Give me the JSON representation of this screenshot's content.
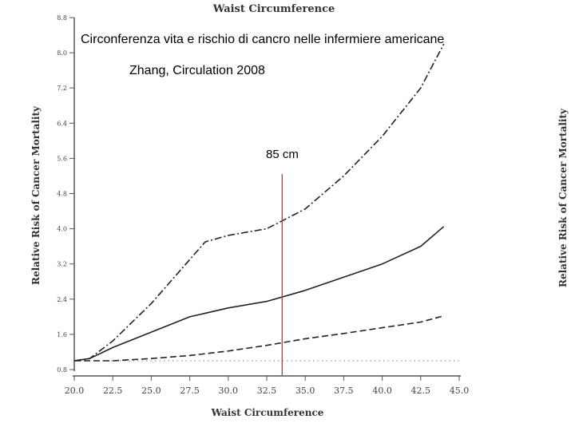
{
  "chart_data": {
    "type": "line",
    "title": "Waist Circumference",
    "xlabel": "Waist Circumference",
    "ylabel": "Relative Risk of Cancer Mortality",
    "ylabel_right": "Relative Risk of Cancer Mortality",
    "xlim": [
      20.0,
      45.0
    ],
    "ylim": [
      0.8,
      8.8
    ],
    "x_ticks": [
      "20.0",
      "22.5",
      "25.0",
      "27.5",
      "30.0",
      "32.5",
      "35.0",
      "37.5",
      "40.0",
      "42.5",
      "45.0"
    ],
    "y_ticks": [
      "0.8",
      "1.6",
      "2.4",
      "3.2",
      "4.0",
      "4.8",
      "5.6",
      "6.4",
      "7.2",
      "8.0",
      "8.8"
    ],
    "grid": false,
    "reference_line": 1.0,
    "series": [
      {
        "style": "dash-dot",
        "points": [
          [
            20.0,
            1.0
          ],
          [
            21.0,
            1.05
          ],
          [
            22.5,
            1.45
          ],
          [
            25.0,
            2.3
          ],
          [
            27.5,
            3.3
          ],
          [
            28.5,
            3.7
          ],
          [
            30.0,
            3.85
          ],
          [
            32.5,
            4.0
          ],
          [
            35.0,
            4.45
          ],
          [
            37.5,
            5.2
          ],
          [
            40.0,
            6.1
          ],
          [
            42.5,
            7.2
          ],
          [
            44.0,
            8.2
          ]
        ]
      },
      {
        "style": "solid",
        "points": [
          [
            20.0,
            1.0
          ],
          [
            21.0,
            1.05
          ],
          [
            22.5,
            1.3
          ],
          [
            25.0,
            1.65
          ],
          [
            27.5,
            2.0
          ],
          [
            30.0,
            2.2
          ],
          [
            32.5,
            2.35
          ],
          [
            35.0,
            2.6
          ],
          [
            37.5,
            2.9
          ],
          [
            40.0,
            3.2
          ],
          [
            42.5,
            3.6
          ],
          [
            44.0,
            4.05
          ]
        ]
      },
      {
        "style": "dash",
        "points": [
          [
            20.0,
            1.0
          ],
          [
            22.5,
            1.0
          ],
          [
            25.0,
            1.05
          ],
          [
            27.5,
            1.12
          ],
          [
            30.0,
            1.22
          ],
          [
            32.5,
            1.35
          ],
          [
            35.0,
            1.5
          ],
          [
            37.5,
            1.62
          ],
          [
            40.0,
            1.75
          ],
          [
            42.5,
            1.88
          ],
          [
            44.0,
            2.02
          ]
        ]
      }
    ],
    "marker": {
      "x": 33.5,
      "label": "85 cm",
      "color": "#c0392b"
    }
  },
  "overlay": {
    "title": "Circonferenza vita e rischio di cancro nelle infermiere americane",
    "citation": "Zhang, Circulation 2008"
  }
}
